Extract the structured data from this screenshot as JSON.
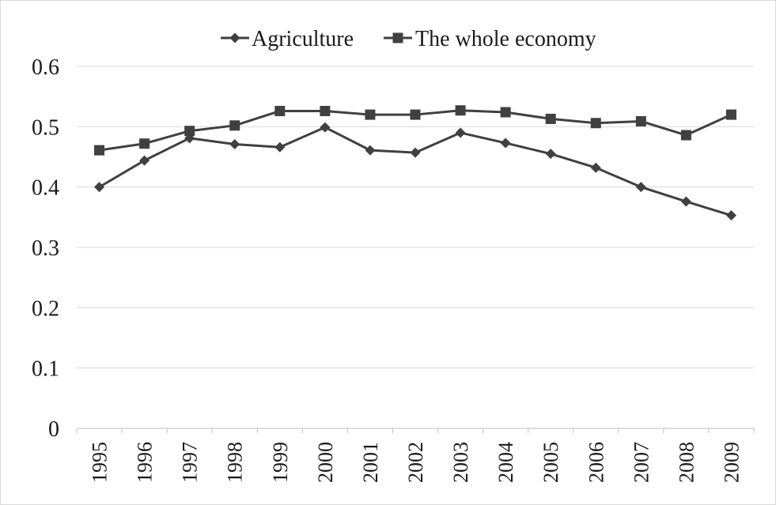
{
  "chart_data": {
    "type": "line",
    "title": "",
    "xlabel": "",
    "ylabel": "",
    "categories": [
      "1995",
      "1996",
      "1997",
      "1998",
      "1999",
      "2000",
      "2001",
      "2002",
      "2003",
      "2004",
      "2005",
      "2006",
      "2007",
      "2008",
      "2009"
    ],
    "ylim": [
      0,
      0.6
    ],
    "y_ticks": [
      "0",
      "0.1",
      "0.2",
      "0.3",
      "0.4",
      "0.5",
      "0.6"
    ],
    "grid": "horizontal",
    "legend_position": "top",
    "series": [
      {
        "name": "Agriculture",
        "marker": "diamond",
        "color": "#404040",
        "values": [
          0.4,
          0.444,
          0.481,
          0.471,
          0.466,
          0.499,
          0.461,
          0.457,
          0.49,
          0.473,
          0.455,
          0.432,
          0.4,
          0.376,
          0.353
        ]
      },
      {
        "name": "The whole economy",
        "marker": "square",
        "color": "#404040",
        "values": [
          0.461,
          0.472,
          0.493,
          0.502,
          0.526,
          0.526,
          0.52,
          0.52,
          0.527,
          0.524,
          0.513,
          0.506,
          0.509,
          0.486,
          0.52
        ]
      }
    ]
  }
}
